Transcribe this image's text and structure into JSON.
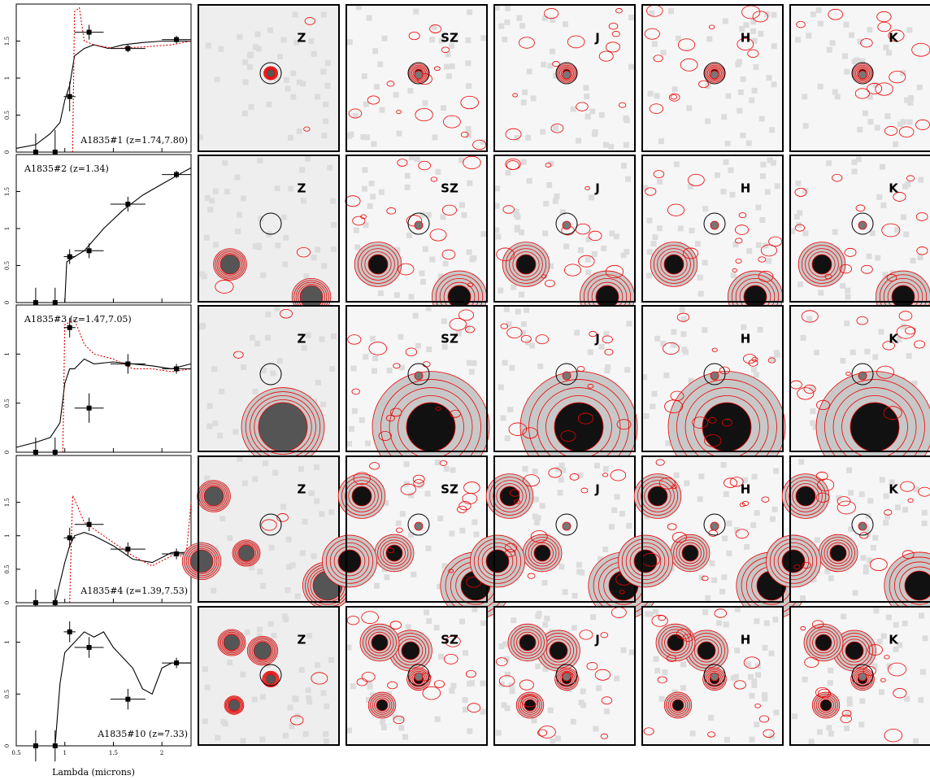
{
  "chart_data": [
    {
      "type": "line",
      "label": "A1835#1 (z=1.74,7.80)",
      "xlim": [
        0.5,
        2.3
      ],
      "xticks": [
        0.5,
        1,
        1.5,
        2
      ],
      "ylim": [
        0,
        2
      ],
      "yticks": [
        0,
        0.5,
        1,
        1.5
      ],
      "series": [
        {
          "color": "#000000",
          "x": [
            0.5,
            0.7,
            0.85,
            0.95,
            1.0,
            1.05,
            1.1,
            1.2,
            1.3,
            1.45,
            1.6,
            1.8,
            2.0,
            2.2,
            2.3
          ],
          "values": [
            0.05,
            0.1,
            0.25,
            0.4,
            0.7,
            0.9,
            1.3,
            1.4,
            1.45,
            1.4,
            1.45,
            1.48,
            1.5,
            1.5,
            1.5
          ]
        },
        {
          "color": "#e00000",
          "dashed": true,
          "x": [
            1.08,
            1.1,
            1.15,
            1.2,
            1.3,
            1.5,
            1.8,
            2.1,
            2.3
          ],
          "values": [
            0,
            1.9,
            1.95,
            1.5,
            1.45,
            1.4,
            1.42,
            1.45,
            1.5
          ]
        }
      ],
      "points": {
        "x": [
          0.7,
          0.9,
          1.05,
          1.25,
          1.65,
          2.15
        ],
        "values": [
          0,
          0,
          0.75,
          1.62,
          1.4,
          1.52
        ],
        "xerr": [
          0.05,
          0.05,
          0.06,
          0.15,
          0.18,
          0.15
        ],
        "yerr": [
          0.25,
          0.3,
          0.2,
          0.1,
          0.05,
          0.05
        ]
      }
    },
    {
      "type": "line",
      "label": "A1835#2 (z=1.34)",
      "xlim": [
        0.5,
        2.3
      ],
      "xticks": [
        0.5,
        1,
        1.5,
        2
      ],
      "ylim": [
        0,
        2
      ],
      "yticks": [
        0,
        0.5,
        1,
        1.5
      ],
      "series": [
        {
          "color": "#000000",
          "x": [
            0.9,
            1.0,
            1.02,
            1.1,
            1.2,
            1.3,
            1.4,
            1.6,
            1.8,
            2.0,
            2.2,
            2.3
          ],
          "values": [
            0,
            0,
            0.55,
            0.62,
            0.7,
            0.85,
            1.0,
            1.25,
            1.45,
            1.6,
            1.75,
            1.82
          ]
        }
      ],
      "points": {
        "x": [
          0.7,
          0.9,
          1.05,
          1.25,
          1.65,
          2.15
        ],
        "values": [
          0,
          0,
          0.62,
          0.7,
          1.33,
          1.73
        ],
        "xerr": [
          0.05,
          0.05,
          0.06,
          0.15,
          0.18,
          0.15
        ],
        "yerr": [
          0.2,
          0.2,
          0.1,
          0.1,
          0.1,
          0.05
        ]
      }
    },
    {
      "type": "line",
      "label": "A1835#3 (z=1.47,7.05)",
      "xlim": [
        0.5,
        2.3
      ],
      "xticks": [
        0.5,
        1,
        1.5,
        2
      ],
      "ylim": [
        0,
        1.5
      ],
      "yticks": [
        0,
        0.5,
        1
      ],
      "series": [
        {
          "color": "#000000",
          "x": [
            0.5,
            0.7,
            0.85,
            0.95,
            1.0,
            1.05,
            1.1,
            1.2,
            1.3,
            1.5,
            1.7,
            1.9,
            2.1,
            2.3
          ],
          "values": [
            0.05,
            0.1,
            0.15,
            0.3,
            0.7,
            0.85,
            0.85,
            0.95,
            0.9,
            0.92,
            0.9,
            0.88,
            0.85,
            0.9
          ]
        },
        {
          "color": "#e00000",
          "dashed": true,
          "x": [
            0.98,
            1.0,
            1.1,
            1.2,
            1.3,
            1.5,
            1.7,
            1.9,
            2.1,
            2.3
          ],
          "values": [
            0,
            1.3,
            1.35,
            1.1,
            1.0,
            0.95,
            0.85,
            0.85,
            0.82,
            0.85
          ]
        }
      ],
      "points": {
        "x": [
          0.7,
          0.9,
          1.05,
          1.25,
          1.65,
          2.15
        ],
        "values": [
          0,
          0,
          1.27,
          0.45,
          0.9,
          0.85
        ],
        "xerr": [
          0.05,
          0.05,
          0.06,
          0.15,
          0.18,
          0.15
        ],
        "yerr": [
          0.15,
          0.15,
          0.1,
          0.15,
          0.1,
          0.05
        ]
      }
    },
    {
      "type": "line",
      "label": "A1835#4 (z=1.39,7.53)",
      "xlim": [
        0.5,
        2.3
      ],
      "xticks": [
        0.5,
        1,
        1.5,
        2
      ],
      "ylim": [
        0,
        2.2
      ],
      "yticks": [
        0,
        0.5,
        1,
        1.5
      ],
      "series": [
        {
          "color": "#000000",
          "x": [
            0.9,
            0.95,
            1.0,
            1.05,
            1.1,
            1.2,
            1.3,
            1.5,
            1.7,
            1.9,
            2.1,
            2.3
          ],
          "values": [
            0,
            0.3,
            0.6,
            0.85,
            1.0,
            1.05,
            1.0,
            0.85,
            0.65,
            0.6,
            0.75,
            0.75
          ]
        },
        {
          "color": "#e00000",
          "dashed": true,
          "x": [
            1.05,
            1.08,
            1.1,
            1.2,
            1.3,
            1.5,
            1.7,
            1.9,
            2.1,
            2.25,
            2.3
          ],
          "values": [
            0,
            1.6,
            1.55,
            1.2,
            1.1,
            0.9,
            0.7,
            0.55,
            0.7,
            0.7,
            1.5
          ]
        }
      ],
      "points": {
        "x": [
          0.7,
          0.9,
          1.05,
          1.25,
          1.65,
          2.15
        ],
        "values": [
          0,
          0,
          0.97,
          1.17,
          0.8,
          0.73
        ],
        "xerr": [
          0.05,
          0.05,
          0.06,
          0.15,
          0.18,
          0.15
        ],
        "yerr": [
          0.2,
          0.2,
          0.15,
          0.1,
          0.1,
          0.08
        ]
      }
    },
    {
      "type": "line",
      "label": "A1835#10 (z=7.33)",
      "xlim": [
        0.5,
        2.3
      ],
      "xticks": [
        0.5,
        1,
        1.5,
        2
      ],
      "ylim": [
        0,
        1.35
      ],
      "yticks": [
        0,
        0.5,
        1
      ],
      "xlabel": "Lambda (microns)",
      "series": [
        {
          "color": "#000000",
          "x": [
            0.9,
            0.95,
            1.0,
            1.05,
            1.1,
            1.2,
            1.3,
            1.4,
            1.5,
            1.6,
            1.7,
            1.8,
            1.9,
            2.0,
            2.1,
            2.3
          ],
          "values": [
            0,
            0.6,
            0.9,
            0.95,
            1.0,
            1.1,
            1.05,
            1.1,
            0.95,
            0.85,
            0.75,
            0.55,
            0.5,
            0.75,
            0.8,
            0.8
          ]
        }
      ],
      "points": {
        "x": [
          0.7,
          0.9,
          1.05,
          1.25,
          1.65,
          2.15
        ],
        "values": [
          0,
          0,
          1.1,
          0.95,
          0.45,
          0.8
        ],
        "xerr": [
          0.05,
          0.05,
          0.06,
          0.15,
          0.18,
          0.15
        ],
        "yerr": [
          0.15,
          0.15,
          0.1,
          0.1,
          0.1,
          0.05
        ]
      }
    }
  ],
  "bands": [
    "Z",
    "SZ",
    "J",
    "H",
    "K"
  ]
}
